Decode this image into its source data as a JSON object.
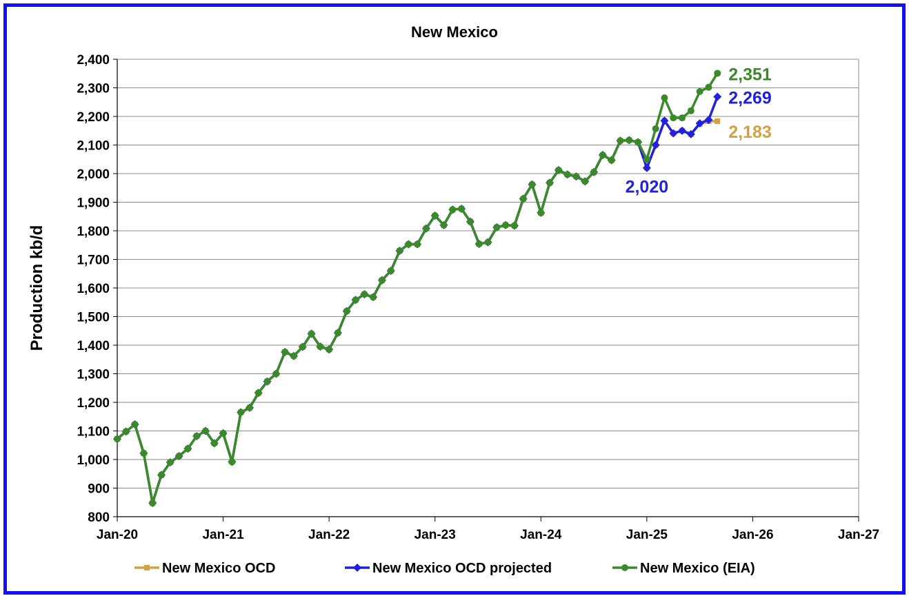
{
  "chart_data": {
    "type": "line",
    "title": "New Mexico",
    "ylabel": "Production kb/d",
    "xlabel": "",
    "ylim": [
      800,
      2400
    ],
    "ytick_step": 100,
    "ytick_labels": [
      "800",
      "900",
      "1,000",
      "1,100",
      "1,200",
      "1,300",
      "1,400",
      "1,500",
      "1,600",
      "1,700",
      "1,800",
      "1,900",
      "2,000",
      "2,100",
      "2,200",
      "2,300",
      "2,400"
    ],
    "xlim": [
      "2020-01",
      "2027-01"
    ],
    "xtick_labels": [
      "Jan-20",
      "Jan-21",
      "Jan-22",
      "Jan-23",
      "Jan-24",
      "Jan-25",
      "Jan-26",
      "Jan-27"
    ],
    "grid": "horizontal",
    "legend_position": "bottom",
    "series": [
      {
        "name": "New Mexico OCD",
        "color": "#D4A040",
        "marker": "square",
        "x": [
          "2020-01",
          "2020-02",
          "2020-03",
          "2020-04",
          "2020-05",
          "2020-06",
          "2020-07",
          "2020-08",
          "2020-09",
          "2020-10",
          "2020-11",
          "2020-12",
          "2021-01",
          "2021-02",
          "2021-03",
          "2021-04",
          "2021-05",
          "2021-06",
          "2021-07",
          "2021-08",
          "2021-09",
          "2021-10",
          "2021-11",
          "2021-12",
          "2022-01",
          "2022-02",
          "2022-03",
          "2022-04",
          "2022-05",
          "2022-06",
          "2022-07",
          "2022-08",
          "2022-09",
          "2022-10",
          "2022-11",
          "2022-12",
          "2023-01",
          "2023-02",
          "2023-03",
          "2023-04",
          "2023-05",
          "2023-06",
          "2023-07",
          "2023-08",
          "2023-09",
          "2023-10",
          "2023-11",
          "2023-12",
          "2024-01",
          "2024-02",
          "2024-03",
          "2024-04",
          "2024-05",
          "2024-06",
          "2024-07",
          "2024-08",
          "2024-09",
          "2024-10",
          "2024-11",
          "2024-12",
          "2025-01",
          "2025-02",
          "2025-03",
          "2025-04",
          "2025-05",
          "2025-06",
          "2025-07",
          "2025-08",
          "2025-09"
        ],
        "values": [
          1072,
          1098,
          1123,
          1022,
          848,
          946,
          990,
          1012,
          1038,
          1082,
          1100,
          1057,
          1092,
          992,
          1165,
          1181,
          1233,
          1273,
          1300,
          1376,
          1362,
          1394,
          1440,
          1395,
          1385,
          1443,
          1519,
          1558,
          1578,
          1568,
          1627,
          1660,
          1730,
          1753,
          1753,
          1808,
          1853,
          1820,
          1874,
          1877,
          1832,
          1754,
          1760,
          1812,
          1820,
          1818,
          1912,
          1962,
          1863,
          1968,
          2012,
          1997,
          1990,
          1973,
          2005,
          2065,
          2047,
          2115,
          2117,
          2110,
          2020,
          2100,
          2185,
          2141,
          2150,
          2138,
          2173,
          2183,
          2183
        ]
      },
      {
        "name": "New Mexico OCD projected",
        "color": "#2020E0",
        "marker": "diamond",
        "x": [
          "2020-01",
          "2020-02",
          "2020-03",
          "2020-04",
          "2020-05",
          "2020-06",
          "2020-07",
          "2020-08",
          "2020-09",
          "2020-10",
          "2020-11",
          "2020-12",
          "2021-01",
          "2021-02",
          "2021-03",
          "2021-04",
          "2021-05",
          "2021-06",
          "2021-07",
          "2021-08",
          "2021-09",
          "2021-10",
          "2021-11",
          "2021-12",
          "2022-01",
          "2022-02",
          "2022-03",
          "2022-04",
          "2022-05",
          "2022-06",
          "2022-07",
          "2022-08",
          "2022-09",
          "2022-10",
          "2022-11",
          "2022-12",
          "2023-01",
          "2023-02",
          "2023-03",
          "2023-04",
          "2023-05",
          "2023-06",
          "2023-07",
          "2023-08",
          "2023-09",
          "2023-10",
          "2023-11",
          "2023-12",
          "2024-01",
          "2024-02",
          "2024-03",
          "2024-04",
          "2024-05",
          "2024-06",
          "2024-07",
          "2024-08",
          "2024-09",
          "2024-10",
          "2024-11",
          "2024-12",
          "2025-01",
          "2025-02",
          "2025-03",
          "2025-04",
          "2025-05",
          "2025-06",
          "2025-07",
          "2025-08",
          "2025-09"
        ],
        "values": [
          1072,
          1098,
          1123,
          1022,
          848,
          946,
          990,
          1012,
          1038,
          1082,
          1100,
          1057,
          1092,
          992,
          1165,
          1181,
          1233,
          1273,
          1300,
          1376,
          1362,
          1394,
          1440,
          1395,
          1385,
          1443,
          1519,
          1558,
          1578,
          1568,
          1627,
          1660,
          1730,
          1753,
          1753,
          1808,
          1853,
          1820,
          1874,
          1877,
          1832,
          1754,
          1760,
          1812,
          1820,
          1818,
          1912,
          1962,
          1863,
          1968,
          2012,
          1997,
          1990,
          1973,
          2005,
          2065,
          2047,
          2115,
          2117,
          2110,
          2020,
          2100,
          2185,
          2141,
          2150,
          2138,
          2176,
          2188,
          2269
        ]
      },
      {
        "name": "New Mexico (EIA)",
        "color": "#3A8A2A",
        "marker": "circle",
        "x": [
          "2020-01",
          "2020-02",
          "2020-03",
          "2020-04",
          "2020-05",
          "2020-06",
          "2020-07",
          "2020-08",
          "2020-09",
          "2020-10",
          "2020-11",
          "2020-12",
          "2021-01",
          "2021-02",
          "2021-03",
          "2021-04",
          "2021-05",
          "2021-06",
          "2021-07",
          "2021-08",
          "2021-09",
          "2021-10",
          "2021-11",
          "2021-12",
          "2022-01",
          "2022-02",
          "2022-03",
          "2022-04",
          "2022-05",
          "2022-06",
          "2022-07",
          "2022-08",
          "2022-09",
          "2022-10",
          "2022-11",
          "2022-12",
          "2023-01",
          "2023-02",
          "2023-03",
          "2023-04",
          "2023-05",
          "2023-06",
          "2023-07",
          "2023-08",
          "2023-09",
          "2023-10",
          "2023-11",
          "2023-12",
          "2024-01",
          "2024-02",
          "2024-03",
          "2024-04",
          "2024-05",
          "2024-06",
          "2024-07",
          "2024-08",
          "2024-09",
          "2024-10",
          "2024-11",
          "2024-12",
          "2025-01",
          "2025-02",
          "2025-03",
          "2025-04",
          "2025-05",
          "2025-06",
          "2025-07",
          "2025-08",
          "2025-09"
        ],
        "values": [
          1072,
          1098,
          1123,
          1022,
          848,
          946,
          990,
          1012,
          1038,
          1082,
          1100,
          1057,
          1092,
          992,
          1165,
          1181,
          1233,
          1273,
          1300,
          1376,
          1362,
          1394,
          1440,
          1395,
          1385,
          1443,
          1519,
          1558,
          1578,
          1568,
          1627,
          1660,
          1730,
          1753,
          1753,
          1808,
          1853,
          1820,
          1874,
          1877,
          1832,
          1754,
          1760,
          1812,
          1820,
          1818,
          1912,
          1962,
          1863,
          1968,
          2012,
          1997,
          1990,
          1973,
          2005,
          2065,
          2047,
          2115,
          2117,
          2110,
          2050,
          2157,
          2265,
          2195,
          2195,
          2220,
          2287,
          2302,
          2351
        ]
      }
    ],
    "annotations": [
      {
        "text": "2,351",
        "x": "2025-09",
        "value": 2351,
        "color": "#3A8A2A"
      },
      {
        "text": "2,269",
        "x": "2025-09",
        "value": 2269,
        "color": "#2020E0"
      },
      {
        "text": "2,183",
        "x": "2025-09",
        "value": 2183,
        "color": "#D4A040"
      },
      {
        "text": "2,020",
        "x": "2025-01",
        "value": 2020,
        "color": "#2020E0"
      }
    ]
  }
}
